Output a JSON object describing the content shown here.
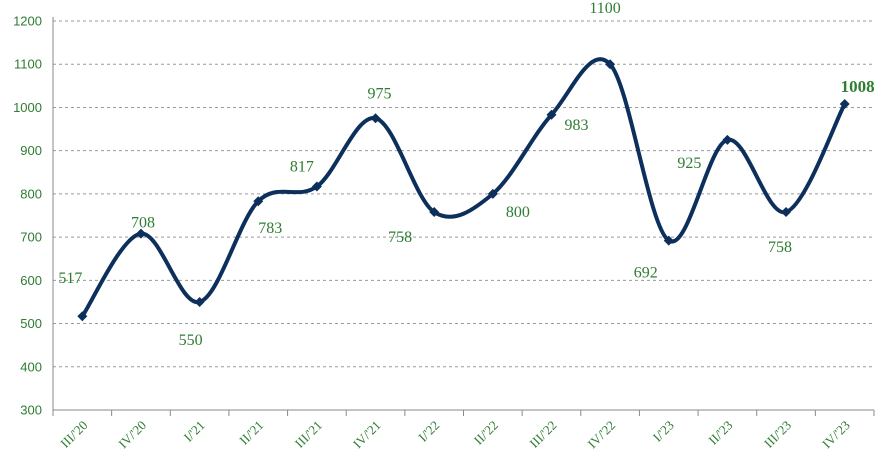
{
  "chart_data": {
    "type": "line",
    "title": "",
    "xlabel": "",
    "ylabel": "",
    "categories": [
      "III/'20",
      "IV/'20",
      "I/'21",
      "II/'21",
      "III/'21",
      "IV/'21",
      "I/'22",
      "II/'22",
      "III/'22",
      "IV/'22",
      "I/'23",
      "II/'23",
      "III/'23",
      "IV/'23"
    ],
    "series": [
      {
        "values": [
          517,
          708,
          550,
          783,
          817,
          975,
          758,
          800,
          983,
          1100,
          692,
          925,
          758,
          1008
        ],
        "labels": [
          "517",
          "708",
          "550",
          "783",
          "817",
          "975",
          "758",
          "800",
          "983",
          "1100",
          "692",
          "925",
          "758",
          "1008"
        ]
      }
    ],
    "ylim": [
      300,
      1200
    ],
    "yticks": [
      "300",
      "400",
      "500",
      "600",
      "700",
      "800",
      "900",
      "1000",
      "1100",
      "1200"
    ],
    "grid": true,
    "smooth": true,
    "line_color": "#0d2f5c",
    "label_color": "#2e7d32",
    "highlight_last_label": true
  }
}
